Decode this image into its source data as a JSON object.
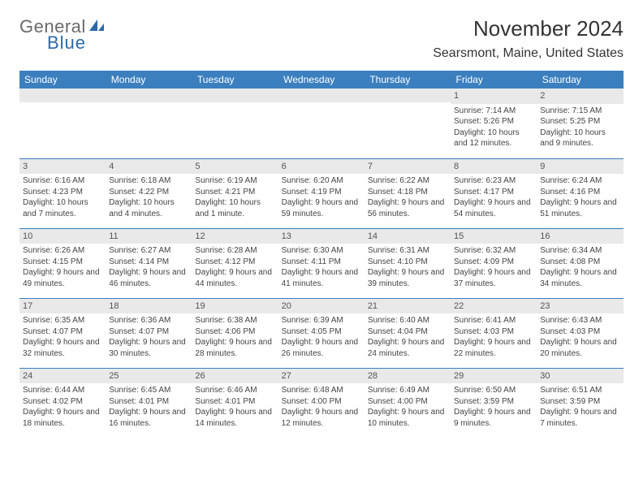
{
  "brand": {
    "line1": "General",
    "line2": "Blue"
  },
  "title": "November 2024",
  "location": "Searsmont, Maine, United States",
  "colors": {
    "header_bg": "#3b7fbf",
    "header_text": "#ffffff",
    "daynum_bg": "#e9e9e9",
    "border": "#3b7fbf",
    "brand_gray": "#6a6a6a",
    "brand_blue": "#2b6aa8"
  },
  "weekdays": [
    "Sunday",
    "Monday",
    "Tuesday",
    "Wednesday",
    "Thursday",
    "Friday",
    "Saturday"
  ],
  "weeks": [
    [
      null,
      null,
      null,
      null,
      null,
      {
        "n": "1",
        "sr": "Sunrise: 7:14 AM",
        "ss": "Sunset: 5:26 PM",
        "dl": "Daylight: 10 hours and 12 minutes."
      },
      {
        "n": "2",
        "sr": "Sunrise: 7:15 AM",
        "ss": "Sunset: 5:25 PM",
        "dl": "Daylight: 10 hours and 9 minutes."
      }
    ],
    [
      {
        "n": "3",
        "sr": "Sunrise: 6:16 AM",
        "ss": "Sunset: 4:23 PM",
        "dl": "Daylight: 10 hours and 7 minutes."
      },
      {
        "n": "4",
        "sr": "Sunrise: 6:18 AM",
        "ss": "Sunset: 4:22 PM",
        "dl": "Daylight: 10 hours and 4 minutes."
      },
      {
        "n": "5",
        "sr": "Sunrise: 6:19 AM",
        "ss": "Sunset: 4:21 PM",
        "dl": "Daylight: 10 hours and 1 minute."
      },
      {
        "n": "6",
        "sr": "Sunrise: 6:20 AM",
        "ss": "Sunset: 4:19 PM",
        "dl": "Daylight: 9 hours and 59 minutes."
      },
      {
        "n": "7",
        "sr": "Sunrise: 6:22 AM",
        "ss": "Sunset: 4:18 PM",
        "dl": "Daylight: 9 hours and 56 minutes."
      },
      {
        "n": "8",
        "sr": "Sunrise: 6:23 AM",
        "ss": "Sunset: 4:17 PM",
        "dl": "Daylight: 9 hours and 54 minutes."
      },
      {
        "n": "9",
        "sr": "Sunrise: 6:24 AM",
        "ss": "Sunset: 4:16 PM",
        "dl": "Daylight: 9 hours and 51 minutes."
      }
    ],
    [
      {
        "n": "10",
        "sr": "Sunrise: 6:26 AM",
        "ss": "Sunset: 4:15 PM",
        "dl": "Daylight: 9 hours and 49 minutes."
      },
      {
        "n": "11",
        "sr": "Sunrise: 6:27 AM",
        "ss": "Sunset: 4:14 PM",
        "dl": "Daylight: 9 hours and 46 minutes."
      },
      {
        "n": "12",
        "sr": "Sunrise: 6:28 AM",
        "ss": "Sunset: 4:12 PM",
        "dl": "Daylight: 9 hours and 44 minutes."
      },
      {
        "n": "13",
        "sr": "Sunrise: 6:30 AM",
        "ss": "Sunset: 4:11 PM",
        "dl": "Daylight: 9 hours and 41 minutes."
      },
      {
        "n": "14",
        "sr": "Sunrise: 6:31 AM",
        "ss": "Sunset: 4:10 PM",
        "dl": "Daylight: 9 hours and 39 minutes."
      },
      {
        "n": "15",
        "sr": "Sunrise: 6:32 AM",
        "ss": "Sunset: 4:09 PM",
        "dl": "Daylight: 9 hours and 37 minutes."
      },
      {
        "n": "16",
        "sr": "Sunrise: 6:34 AM",
        "ss": "Sunset: 4:08 PM",
        "dl": "Daylight: 9 hours and 34 minutes."
      }
    ],
    [
      {
        "n": "17",
        "sr": "Sunrise: 6:35 AM",
        "ss": "Sunset: 4:07 PM",
        "dl": "Daylight: 9 hours and 32 minutes."
      },
      {
        "n": "18",
        "sr": "Sunrise: 6:36 AM",
        "ss": "Sunset: 4:07 PM",
        "dl": "Daylight: 9 hours and 30 minutes."
      },
      {
        "n": "19",
        "sr": "Sunrise: 6:38 AM",
        "ss": "Sunset: 4:06 PM",
        "dl": "Daylight: 9 hours and 28 minutes."
      },
      {
        "n": "20",
        "sr": "Sunrise: 6:39 AM",
        "ss": "Sunset: 4:05 PM",
        "dl": "Daylight: 9 hours and 26 minutes."
      },
      {
        "n": "21",
        "sr": "Sunrise: 6:40 AM",
        "ss": "Sunset: 4:04 PM",
        "dl": "Daylight: 9 hours and 24 minutes."
      },
      {
        "n": "22",
        "sr": "Sunrise: 6:41 AM",
        "ss": "Sunset: 4:03 PM",
        "dl": "Daylight: 9 hours and 22 minutes."
      },
      {
        "n": "23",
        "sr": "Sunrise: 6:43 AM",
        "ss": "Sunset: 4:03 PM",
        "dl": "Daylight: 9 hours and 20 minutes."
      }
    ],
    [
      {
        "n": "24",
        "sr": "Sunrise: 6:44 AM",
        "ss": "Sunset: 4:02 PM",
        "dl": "Daylight: 9 hours and 18 minutes."
      },
      {
        "n": "25",
        "sr": "Sunrise: 6:45 AM",
        "ss": "Sunset: 4:01 PM",
        "dl": "Daylight: 9 hours and 16 minutes."
      },
      {
        "n": "26",
        "sr": "Sunrise: 6:46 AM",
        "ss": "Sunset: 4:01 PM",
        "dl": "Daylight: 9 hours and 14 minutes."
      },
      {
        "n": "27",
        "sr": "Sunrise: 6:48 AM",
        "ss": "Sunset: 4:00 PM",
        "dl": "Daylight: 9 hours and 12 minutes."
      },
      {
        "n": "28",
        "sr": "Sunrise: 6:49 AM",
        "ss": "Sunset: 4:00 PM",
        "dl": "Daylight: 9 hours and 10 minutes."
      },
      {
        "n": "29",
        "sr": "Sunrise: 6:50 AM",
        "ss": "Sunset: 3:59 PM",
        "dl": "Daylight: 9 hours and 9 minutes."
      },
      {
        "n": "30",
        "sr": "Sunrise: 6:51 AM",
        "ss": "Sunset: 3:59 PM",
        "dl": "Daylight: 9 hours and 7 minutes."
      }
    ]
  ]
}
